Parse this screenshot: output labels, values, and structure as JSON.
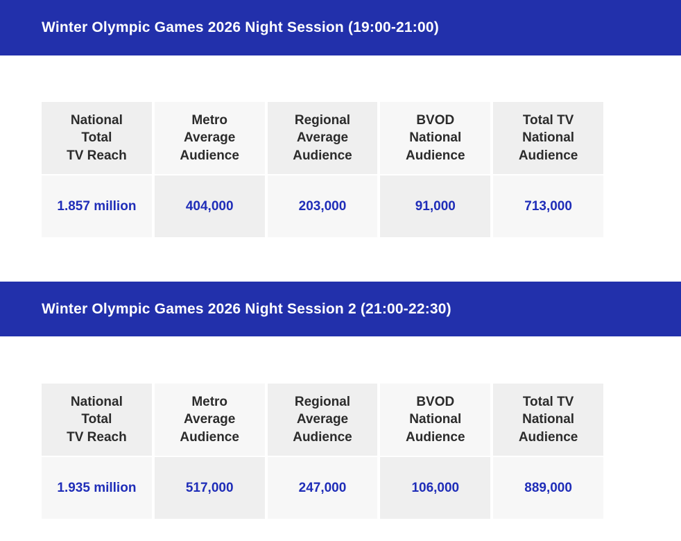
{
  "colors": {
    "bar_blue": "#2230ab",
    "value_blue": "#1f2db8",
    "cell_dark": "#efefef",
    "cell_light": "#f7f7f7",
    "header_text": "#2b2b2b",
    "title_text": "#ffffff"
  },
  "sections": [
    {
      "title": "Winter Olympic Games 2026 Night Session (19:00-21:00)",
      "table": {
        "columns": [
          "National\nTotal\nTV Reach",
          "Metro\nAverage\nAudience",
          "Regional\nAverage\nAudience",
          "BVOD\nNational\nAudience",
          "Total TV\nNational\nAudience"
        ],
        "values": [
          "1.857 million",
          "404,000",
          "203,000",
          "91,000",
          "713,000"
        ]
      }
    },
    {
      "title": "Winter Olympic Games 2026 Night Session 2 (21:00-22:30)",
      "table": {
        "columns": [
          "National\nTotal\nTV Reach",
          "Metro\nAverage\nAudience",
          "Regional\nAverage\nAudience",
          "BVOD\nNational\nAudience",
          "Total TV\nNational\nAudience"
        ],
        "values": [
          "1.935 million",
          "517,000",
          "247,000",
          "106,000",
          "889,000"
        ]
      }
    }
  ]
}
